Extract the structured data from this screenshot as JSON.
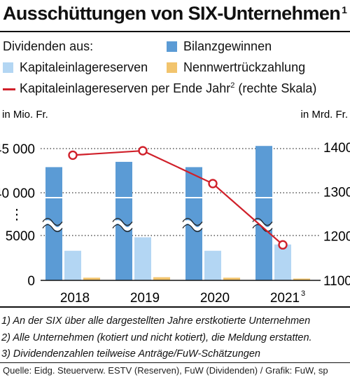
{
  "title": "Ausschüttungen von SIX-Unternehmen",
  "title_note": "1",
  "legend": {
    "lead": "Dividenden aus:",
    "items": [
      {
        "label": "Bilanzgewinnen",
        "color": "#5b9bd5"
      },
      {
        "label": "Kapitaleinlagereserven",
        "color": "#b3d6f3"
      },
      {
        "label": "Nennwertrückzahlung",
        "color": "#f2c46d"
      }
    ],
    "line": {
      "label": "Kapitaleinlagereserven per Ende Jahr",
      "note": "2",
      "suffix": "(rechte Skala)",
      "color": "#d0202a"
    }
  },
  "chart_data": {
    "type": "bar",
    "categories": [
      "2018",
      "2019",
      "2020",
      "2021"
    ],
    "category_notes": [
      "",
      "",
      "",
      "3"
    ],
    "left_unit": "in Mio. Fr.",
    "right_unit": "in Mrd. Fr.",
    "left_ticks": [
      "45 000",
      "40 000",
      "⋮",
      "5000",
      "0"
    ],
    "right_ticks": [
      "1400",
      "1300",
      "1200",
      "1100"
    ],
    "axis_break": true,
    "upper_segment": [
      40000,
      45000
    ],
    "lower_segment": [
      0,
      5000
    ],
    "right_ylim": [
      1100,
      1400
    ],
    "series": [
      {
        "name": "Bilanzgewinnen",
        "values": [
          42900,
          43500,
          42900,
          45300
        ]
      },
      {
        "name": "Kapitaleinlagereserven",
        "values": [
          3300,
          4800,
          3300,
          4000
        ]
      },
      {
        "name": "Nennwertrückzahlung",
        "values": [
          300,
          350,
          300,
          200
        ]
      }
    ],
    "line_series": {
      "name": "Kapitaleinlagereserven per Ende Jahr",
      "axis": "right",
      "values": [
        1382,
        1392,
        1318,
        1180
      ]
    }
  },
  "notes": [
    "1) An der SIX über alle dargestellten Jahre erstkotierte Unternehmen",
    "2) Alle Unternehmen (kotiert und nicht kotiert), die Meldung erstatten.",
    "3) Dividendenzahlen teilweise Anträge/FuW-Schätzungen"
  ],
  "source": "Quelle: Eidg. Steuerverw. ESTV (Reserven), FuW (Dividenden) / Grafik: FuW, sp"
}
